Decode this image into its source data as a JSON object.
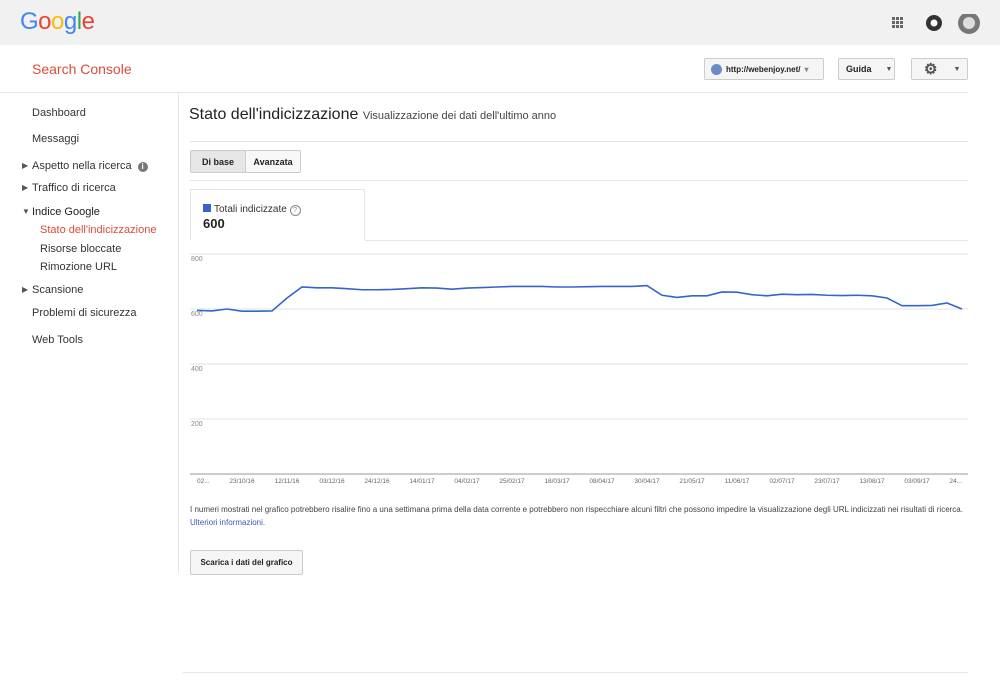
{
  "header": {
    "logo": "Google"
  },
  "topbar": {
    "product": "Search Console",
    "site": "http://webenjoy.net/",
    "help": "Guida"
  },
  "sidebar": {
    "items": [
      {
        "label": "Dashboard"
      },
      {
        "label": "Messaggi"
      },
      {
        "label": "Aspetto nella ricerca",
        "toggle": "collapsed",
        "info": true
      },
      {
        "label": "Traffico di ricerca",
        "toggle": "collapsed"
      },
      {
        "label": "Indice Google",
        "toggle": "expanded"
      },
      {
        "label": "Stato dell'indicizzazione",
        "sub": true,
        "active": true
      },
      {
        "label": "Risorse bloccate",
        "sub": true
      },
      {
        "label": "Rimozione URL",
        "sub": true
      },
      {
        "label": "Scansione",
        "toggle": "collapsed"
      },
      {
        "label": "Problemi di sicurezza"
      },
      {
        "label": "Web Tools"
      }
    ]
  },
  "main": {
    "title": "Stato dell'indicizzazione",
    "subtitle": "Visualizzazione dei dati dell'ultimo anno",
    "tabs": [
      "Di base",
      "Avanzata"
    ],
    "metric_value": 600,
    "note": "I numeri mostrati nel grafico potrebbero risalire fino a una settimana prima della data corrente e potrebbero non rispecchiare alcuni filtri che possono impedire la visualizzazione degli URL indicizzati nei risultati di ricerca.",
    "note_link": "Ulteriori informazioni.",
    "button": "Scarica i dati del grafico"
  },
  "chart_data": {
    "type": "line",
    "categories": [
      "02...",
      null,
      null,
      "23/10/16",
      null,
      null,
      "12/11/16",
      null,
      null,
      "03/12/16",
      null,
      null,
      "24/12/16",
      null,
      null,
      "14/01/17",
      null,
      null,
      "04/02/17",
      null,
      null,
      "25/02/17",
      null,
      null,
      "18/03/17",
      null,
      null,
      "08/04/17",
      null,
      null,
      "30/04/17",
      null,
      null,
      "21/05/17",
      null,
      null,
      "11/06/17",
      null,
      null,
      "02/07/17",
      null,
      null,
      "23/07/17",
      null,
      null,
      "13/08/17",
      null,
      null,
      "03/09/17",
      null,
      null,
      "24..."
    ],
    "series": [
      {
        "name": "Totali indicizzate",
        "color": "#3366cc",
        "values": [
          595,
          593,
          600,
          592,
          592,
          593,
          640,
          680,
          677,
          677,
          674,
          670,
          670,
          671,
          674,
          677,
          676,
          672,
          676,
          678,
          680,
          682,
          682,
          682,
          680,
          680,
          681,
          682,
          682,
          682,
          685,
          650,
          642,
          648,
          648,
          662,
          661,
          652,
          648,
          654,
          652,
          653,
          650,
          649,
          650,
          648,
          640,
          612,
          612,
          613,
          622,
          600
        ]
      }
    ],
    "ylim": [
      0,
      800
    ],
    "yticks": [
      200,
      400,
      600,
      800
    ],
    "grid": true
  }
}
